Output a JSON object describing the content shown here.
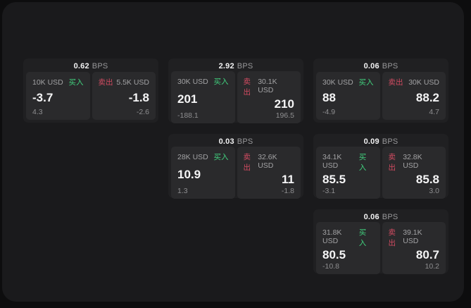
{
  "app": {
    "theme": {
      "outer_bg": "#0d0d0e",
      "panel_bg": "#1a1a1c",
      "card_bg": "#202022",
      "tile_bg": "#2a2a2c",
      "text_primary": "#f5f5f6",
      "text_secondary": "#98989a",
      "buy_color": "#41d17e",
      "sell_color": "#d14b61"
    }
  },
  "labels": {
    "bps": "BPS",
    "buy": "买入",
    "sell": "卖出"
  },
  "cards": [
    {
      "bps": "0.62",
      "buy": {
        "size": "10K USD",
        "price": "-3.7",
        "sub": "4.3"
      },
      "sell": {
        "size": "5.5K USD",
        "price": "-1.8",
        "sub": "-2.6"
      }
    },
    {
      "bps": "2.92",
      "buy": {
        "size": "30K USD",
        "price": "201",
        "sub": "-188.1"
      },
      "sell": {
        "size": "30.1K USD",
        "price": "210",
        "sub": "196.5"
      }
    },
    {
      "bps": "0.06",
      "buy": {
        "size": "30K USD",
        "price": "88",
        "sub": "-4.9"
      },
      "sell": {
        "size": "30K USD",
        "price": "88.2",
        "sub": "4.7"
      }
    },
    {
      "bps": "0.03",
      "buy": {
        "size": "28K USD",
        "price": "10.9",
        "sub": "1.3"
      },
      "sell": {
        "size": "32.6K USD",
        "price": "11",
        "sub": "-1.8"
      }
    },
    {
      "bps": "0.09",
      "buy": {
        "size": "34.1K USD",
        "price": "85.5",
        "sub": "-3.1"
      },
      "sell": {
        "size": "32.8K USD",
        "price": "85.8",
        "sub": "3.0"
      }
    },
    {
      "bps": "0.06",
      "buy": {
        "size": "31.8K USD",
        "price": "80.5",
        "sub": "-10.8"
      },
      "sell": {
        "size": "39.1K USD",
        "price": "80.7",
        "sub": "10.2"
      }
    }
  ]
}
